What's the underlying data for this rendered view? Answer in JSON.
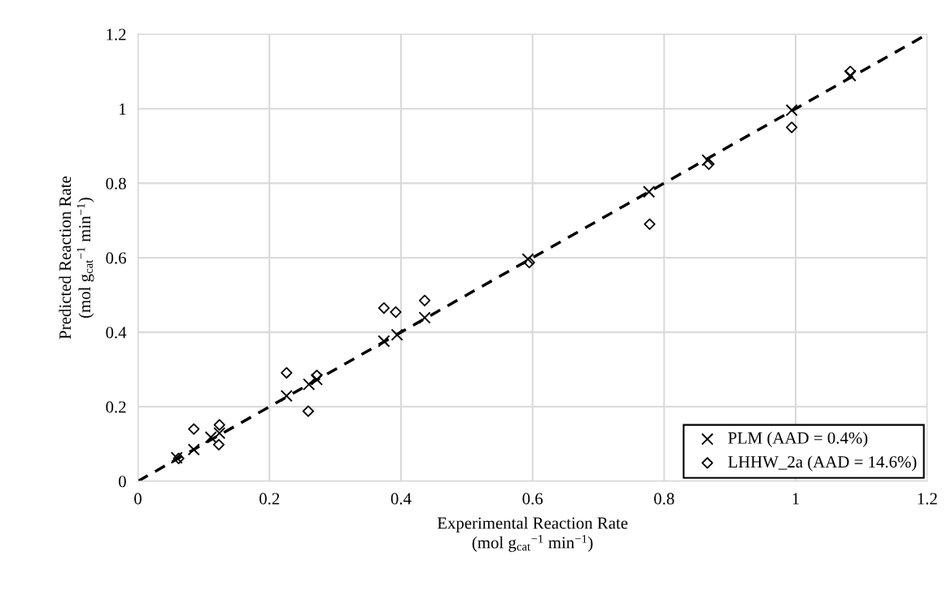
{
  "chart_data": {
    "type": "scatter",
    "xlabel": "Experimental Reaction Rate\n(mol g$_{cat}$$^{−1}$ min$^{−1}$)",
    "ylabel": "Predicted Reaction Rate\n(mol g$_{cat}$$^{−1}$ min$^{−1}$)",
    "xlim": [
      0,
      1.2
    ],
    "ylim": [
      0,
      1.2
    ],
    "xticks": [
      0,
      0.2,
      0.4,
      0.6,
      0.8,
      1,
      1.2
    ],
    "yticks": [
      0,
      0.2,
      0.4,
      0.6,
      0.8,
      1,
      1.2
    ],
    "grid": true,
    "legend": "bottom right",
    "series": [
      {
        "name": "PLM (AAD = 0.4%)",
        "color": "#000000",
        "marker": "cross",
        "x": [
          0.059,
          0.085,
          0.111,
          0.124,
          0.226,
          0.26,
          0.272,
          0.374,
          0.394,
          0.436,
          0.593,
          0.777,
          0.866,
          0.994,
          1.083
        ],
        "values": [
          0.063,
          0.085,
          0.118,
          0.129,
          0.229,
          0.26,
          0.273,
          0.376,
          0.393,
          0.439,
          0.596,
          0.777,
          0.862,
          0.996,
          1.089
        ]
      },
      {
        "name": "LHHW_2a (AAD = 14.6%)",
        "color": "#000000",
        "marker": "diamond",
        "x": [
          0.062,
          0.085,
          0.124,
          0.123,
          0.226,
          0.259,
          0.272,
          0.374,
          0.392,
          0.436,
          0.595,
          0.778,
          0.868,
          0.994,
          1.083
        ],
        "values": [
          0.061,
          0.14,
          0.151,
          0.098,
          0.291,
          0.188,
          0.284,
          0.465,
          0.454,
          0.485,
          0.587,
          0.69,
          0.851,
          0.95,
          1.1
        ]
      },
      {
        "type": "line",
        "color": "#000000",
        "line_style": "dashed",
        "marker": "none",
        "x": [
          0,
          1.2
        ],
        "values": [
          0,
          1.2
        ]
      }
    ]
  }
}
